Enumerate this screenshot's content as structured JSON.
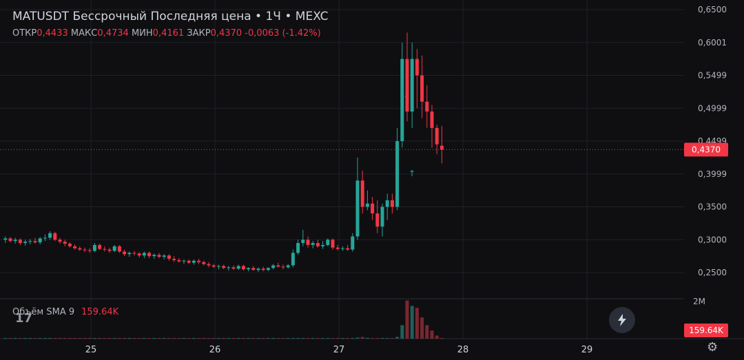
{
  "header": {
    "title": "MATUSDT Бессрочный Последняя цена • 1Ч • MEXC",
    "ohlc": {
      "open_label": "ОТКР",
      "open": "0,4433",
      "high_label": "МАКС",
      "high": "0,4734",
      "low_label": "МИН",
      "low": "0,4161",
      "close_label": "ЗАКР",
      "close": "0,4370",
      "change": "-0,0063 (-1.42%)"
    }
  },
  "volume": {
    "label": "Объём SMA 9",
    "value": "159.64K",
    "axis_label": "2M"
  },
  "logo_text": "17",
  "icons": {
    "bolt": "lightning-icon",
    "settings": "gear-icon"
  },
  "colors": {
    "up": "#26a69a",
    "down": "#f23645",
    "bg": "#0f0f12",
    "grid": "#1f2127"
  },
  "chart_data": {
    "type": "candlestick",
    "title": "MATUSDT Бессрочный Последняя цена • 1Ч • MEXC",
    "y_ticks": [
      "0,2500",
      "0,3000",
      "0,3500",
      "0,3999",
      "0,4499",
      "0,4999",
      "0,5499",
      "0,6001",
      "0,6500"
    ],
    "x_ticks": [
      "25",
      "26",
      "27",
      "28",
      "29"
    ],
    "last_price": "0,4370",
    "ylim": [
      0.21,
      0.65
    ],
    "candles": [
      [
        24.31,
        0.3,
        0.305,
        0.295,
        0.302
      ],
      [
        24.35,
        0.302,
        0.304,
        0.296,
        0.298
      ],
      [
        24.39,
        0.298,
        0.303,
        0.294,
        0.3
      ],
      [
        24.43,
        0.3,
        0.302,
        0.292,
        0.295
      ],
      [
        24.47,
        0.295,
        0.3,
        0.291,
        0.297
      ],
      [
        24.51,
        0.297,
        0.301,
        0.293,
        0.298
      ],
      [
        24.55,
        0.298,
        0.303,
        0.294,
        0.296
      ],
      [
        24.59,
        0.296,
        0.304,
        0.293,
        0.302
      ],
      [
        24.63,
        0.302,
        0.308,
        0.298,
        0.303
      ],
      [
        24.67,
        0.303,
        0.313,
        0.3,
        0.31
      ],
      [
        24.71,
        0.31,
        0.312,
        0.298,
        0.3
      ],
      [
        24.75,
        0.3,
        0.303,
        0.294,
        0.297
      ],
      [
        24.79,
        0.297,
        0.3,
        0.29,
        0.294
      ],
      [
        24.83,
        0.294,
        0.296,
        0.288,
        0.29
      ],
      [
        24.87,
        0.29,
        0.293,
        0.285,
        0.287
      ],
      [
        24.91,
        0.287,
        0.29,
        0.283,
        0.285
      ],
      [
        24.95,
        0.285,
        0.288,
        0.281,
        0.284
      ],
      [
        24.99,
        0.284,
        0.287,
        0.28,
        0.283
      ],
      [
        25.03,
        0.283,
        0.295,
        0.281,
        0.292
      ],
      [
        25.07,
        0.292,
        0.294,
        0.284,
        0.286
      ],
      [
        25.11,
        0.286,
        0.29,
        0.282,
        0.285
      ],
      [
        25.15,
        0.285,
        0.288,
        0.28,
        0.283
      ],
      [
        25.19,
        0.283,
        0.292,
        0.281,
        0.29
      ],
      [
        25.23,
        0.29,
        0.292,
        0.28,
        0.282
      ],
      [
        25.27,
        0.282,
        0.285,
        0.275,
        0.278
      ],
      [
        25.31,
        0.278,
        0.282,
        0.274,
        0.28
      ],
      [
        25.35,
        0.28,
        0.283,
        0.276,
        0.279
      ],
      [
        25.39,
        0.279,
        0.281,
        0.273,
        0.276
      ],
      [
        25.43,
        0.276,
        0.282,
        0.272,
        0.28
      ],
      [
        25.47,
        0.28,
        0.282,
        0.272,
        0.275
      ],
      [
        25.51,
        0.275,
        0.279,
        0.271,
        0.277
      ],
      [
        25.55,
        0.277,
        0.28,
        0.272,
        0.274
      ],
      [
        25.59,
        0.274,
        0.278,
        0.27,
        0.276
      ],
      [
        25.63,
        0.276,
        0.278,
        0.268,
        0.271
      ],
      [
        25.67,
        0.271,
        0.275,
        0.266,
        0.269
      ],
      [
        25.71,
        0.269,
        0.272,
        0.265,
        0.267
      ],
      [
        25.75,
        0.267,
        0.27,
        0.263,
        0.268
      ],
      [
        25.79,
        0.268,
        0.27,
        0.263,
        0.265
      ],
      [
        25.83,
        0.265,
        0.27,
        0.262,
        0.268
      ],
      [
        25.87,
        0.268,
        0.271,
        0.263,
        0.266
      ],
      [
        25.91,
        0.266,
        0.268,
        0.261,
        0.263
      ],
      [
        25.95,
        0.263,
        0.266,
        0.258,
        0.261
      ],
      [
        25.99,
        0.261,
        0.263,
        0.257,
        0.259
      ],
      [
        26.03,
        0.259,
        0.262,
        0.255,
        0.26
      ],
      [
        26.07,
        0.26,
        0.262,
        0.255,
        0.257
      ],
      [
        26.11,
        0.257,
        0.26,
        0.253,
        0.258
      ],
      [
        26.15,
        0.258,
        0.261,
        0.254,
        0.256
      ],
      [
        26.19,
        0.256,
        0.262,
        0.254,
        0.26
      ],
      [
        26.23,
        0.26,
        0.262,
        0.253,
        0.255
      ],
      [
        26.27,
        0.255,
        0.258,
        0.252,
        0.257
      ],
      [
        26.31,
        0.257,
        0.26,
        0.253,
        0.254
      ],
      [
        26.35,
        0.254,
        0.258,
        0.251,
        0.256
      ],
      [
        26.39,
        0.256,
        0.259,
        0.252,
        0.254
      ],
      [
        26.43,
        0.254,
        0.258,
        0.252,
        0.257
      ],
      [
        26.47,
        0.257,
        0.263,
        0.255,
        0.261
      ],
      [
        26.51,
        0.261,
        0.265,
        0.258,
        0.259
      ],
      [
        26.55,
        0.259,
        0.262,
        0.255,
        0.258
      ],
      [
        26.59,
        0.258,
        0.263,
        0.256,
        0.261
      ],
      [
        26.63,
        0.261,
        0.285,
        0.258,
        0.28
      ],
      [
        26.67,
        0.28,
        0.3,
        0.277,
        0.295
      ],
      [
        26.71,
        0.295,
        0.315,
        0.29,
        0.3
      ],
      [
        26.75,
        0.3,
        0.305,
        0.288,
        0.292
      ],
      [
        26.79,
        0.292,
        0.298,
        0.287,
        0.295
      ],
      [
        26.83,
        0.295,
        0.3,
        0.288,
        0.29
      ],
      [
        26.87,
        0.29,
        0.298,
        0.286,
        0.292
      ],
      [
        26.91,
        0.292,
        0.302,
        0.29,
        0.3
      ],
      [
        26.95,
        0.3,
        0.302,
        0.285,
        0.288
      ],
      [
        26.99,
        0.288,
        0.292,
        0.284,
        0.286
      ],
      [
        27.03,
        0.286,
        0.29,
        0.283,
        0.287
      ],
      [
        27.07,
        0.287,
        0.292,
        0.283,
        0.285
      ],
      [
        27.11,
        0.285,
        0.31,
        0.282,
        0.305
      ],
      [
        27.15,
        0.305,
        0.425,
        0.3,
        0.39
      ],
      [
        27.19,
        0.39,
        0.405,
        0.34,
        0.35
      ],
      [
        27.23,
        0.35,
        0.375,
        0.345,
        0.355
      ],
      [
        27.27,
        0.355,
        0.365,
        0.33,
        0.34
      ],
      [
        27.31,
        0.34,
        0.36,
        0.31,
        0.32
      ],
      [
        27.35,
        0.32,
        0.355,
        0.305,
        0.35
      ],
      [
        27.39,
        0.35,
        0.37,
        0.33,
        0.36
      ],
      [
        27.43,
        0.36,
        0.37,
        0.34,
        0.35
      ],
      [
        27.47,
        0.35,
        0.47,
        0.345,
        0.45
      ],
      [
        27.51,
        0.45,
        0.6,
        0.44,
        0.575
      ],
      [
        27.55,
        0.575,
        0.615,
        0.48,
        0.495
      ],
      [
        27.59,
        0.495,
        0.6,
        0.47,
        0.575
      ],
      [
        27.63,
        0.575,
        0.59,
        0.5,
        0.55
      ],
      [
        27.67,
        0.55,
        0.58,
        0.485,
        0.51
      ],
      [
        27.71,
        0.51,
        0.535,
        0.47,
        0.495
      ],
      [
        27.75,
        0.495,
        0.505,
        0.44,
        0.47
      ],
      [
        27.79,
        0.47,
        0.475,
        0.43,
        0.445
      ],
      [
        27.83,
        0.443,
        0.473,
        0.416,
        0.437
      ]
    ],
    "volume_k": [
      5,
      4,
      4,
      3,
      4,
      3,
      4,
      4,
      5,
      6,
      5,
      4,
      4,
      3,
      3,
      3,
      3,
      3,
      5,
      3,
      3,
      3,
      4,
      4,
      3,
      3,
      3,
      3,
      4,
      3,
      3,
      3,
      3,
      3,
      3,
      3,
      3,
      3,
      3,
      3,
      3,
      3,
      3,
      3,
      3,
      3,
      3,
      3,
      3,
      3,
      3,
      3,
      3,
      3,
      3,
      3,
      3,
      3,
      3,
      6,
      9,
      7,
      5,
      5,
      5,
      6,
      5,
      4,
      4,
      4,
      6,
      60,
      85,
      45,
      30,
      35,
      40,
      30,
      30,
      90,
      700,
      1980,
      1700,
      1600,
      1100,
      700,
      420,
      160
    ]
  }
}
